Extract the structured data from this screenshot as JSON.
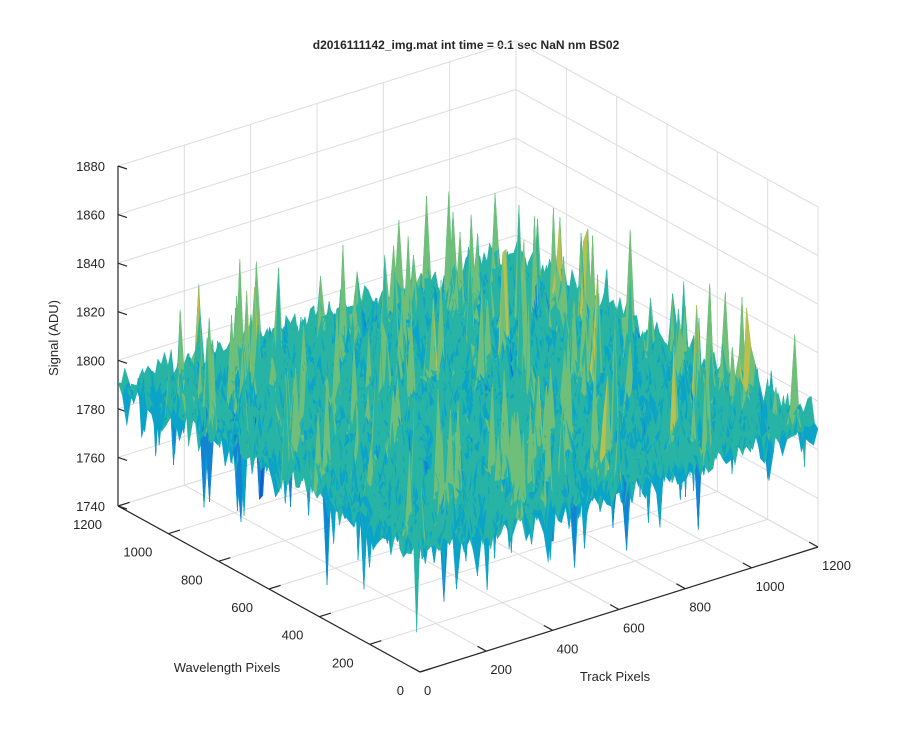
{
  "chart_data": {
    "type": "surface",
    "title": "d2016111142_img.mat int time = 0.1 sec  NaN nm BS02",
    "xlabel": "Track Pixels",
    "ylabel": "Wavelength Pixels",
    "zlabel": "Signal (ADU)",
    "xlim": [
      0,
      1200
    ],
    "ylim": [
      0,
      1200
    ],
    "zlim": [
      1740,
      1880
    ],
    "x_ticks": [
      "0",
      "200",
      "400",
      "600",
      "800",
      "1000",
      "1200"
    ],
    "y_ticks": [
      "0",
      "200",
      "400",
      "600",
      "800",
      "1000",
      "1200"
    ],
    "z_ticks": [
      "1740",
      "1760",
      "1780",
      "1800",
      "1820",
      "1840",
      "1860",
      "1880"
    ],
    "grid": true,
    "colormap": "parula",
    "colors": [
      "#0f5fd0",
      "#1384d4",
      "#0ba4c8",
      "#28b4a4",
      "#6fbf7a",
      "#b9c04d",
      "#e6c83a"
    ],
    "surface_summary": {
      "description_values": "noisy surface with mean near 1790 ADU, range roughly 1745-1875 ADU",
      "mean_signal": 1790,
      "min_signal": 1745,
      "max_signal": 1875
    }
  }
}
